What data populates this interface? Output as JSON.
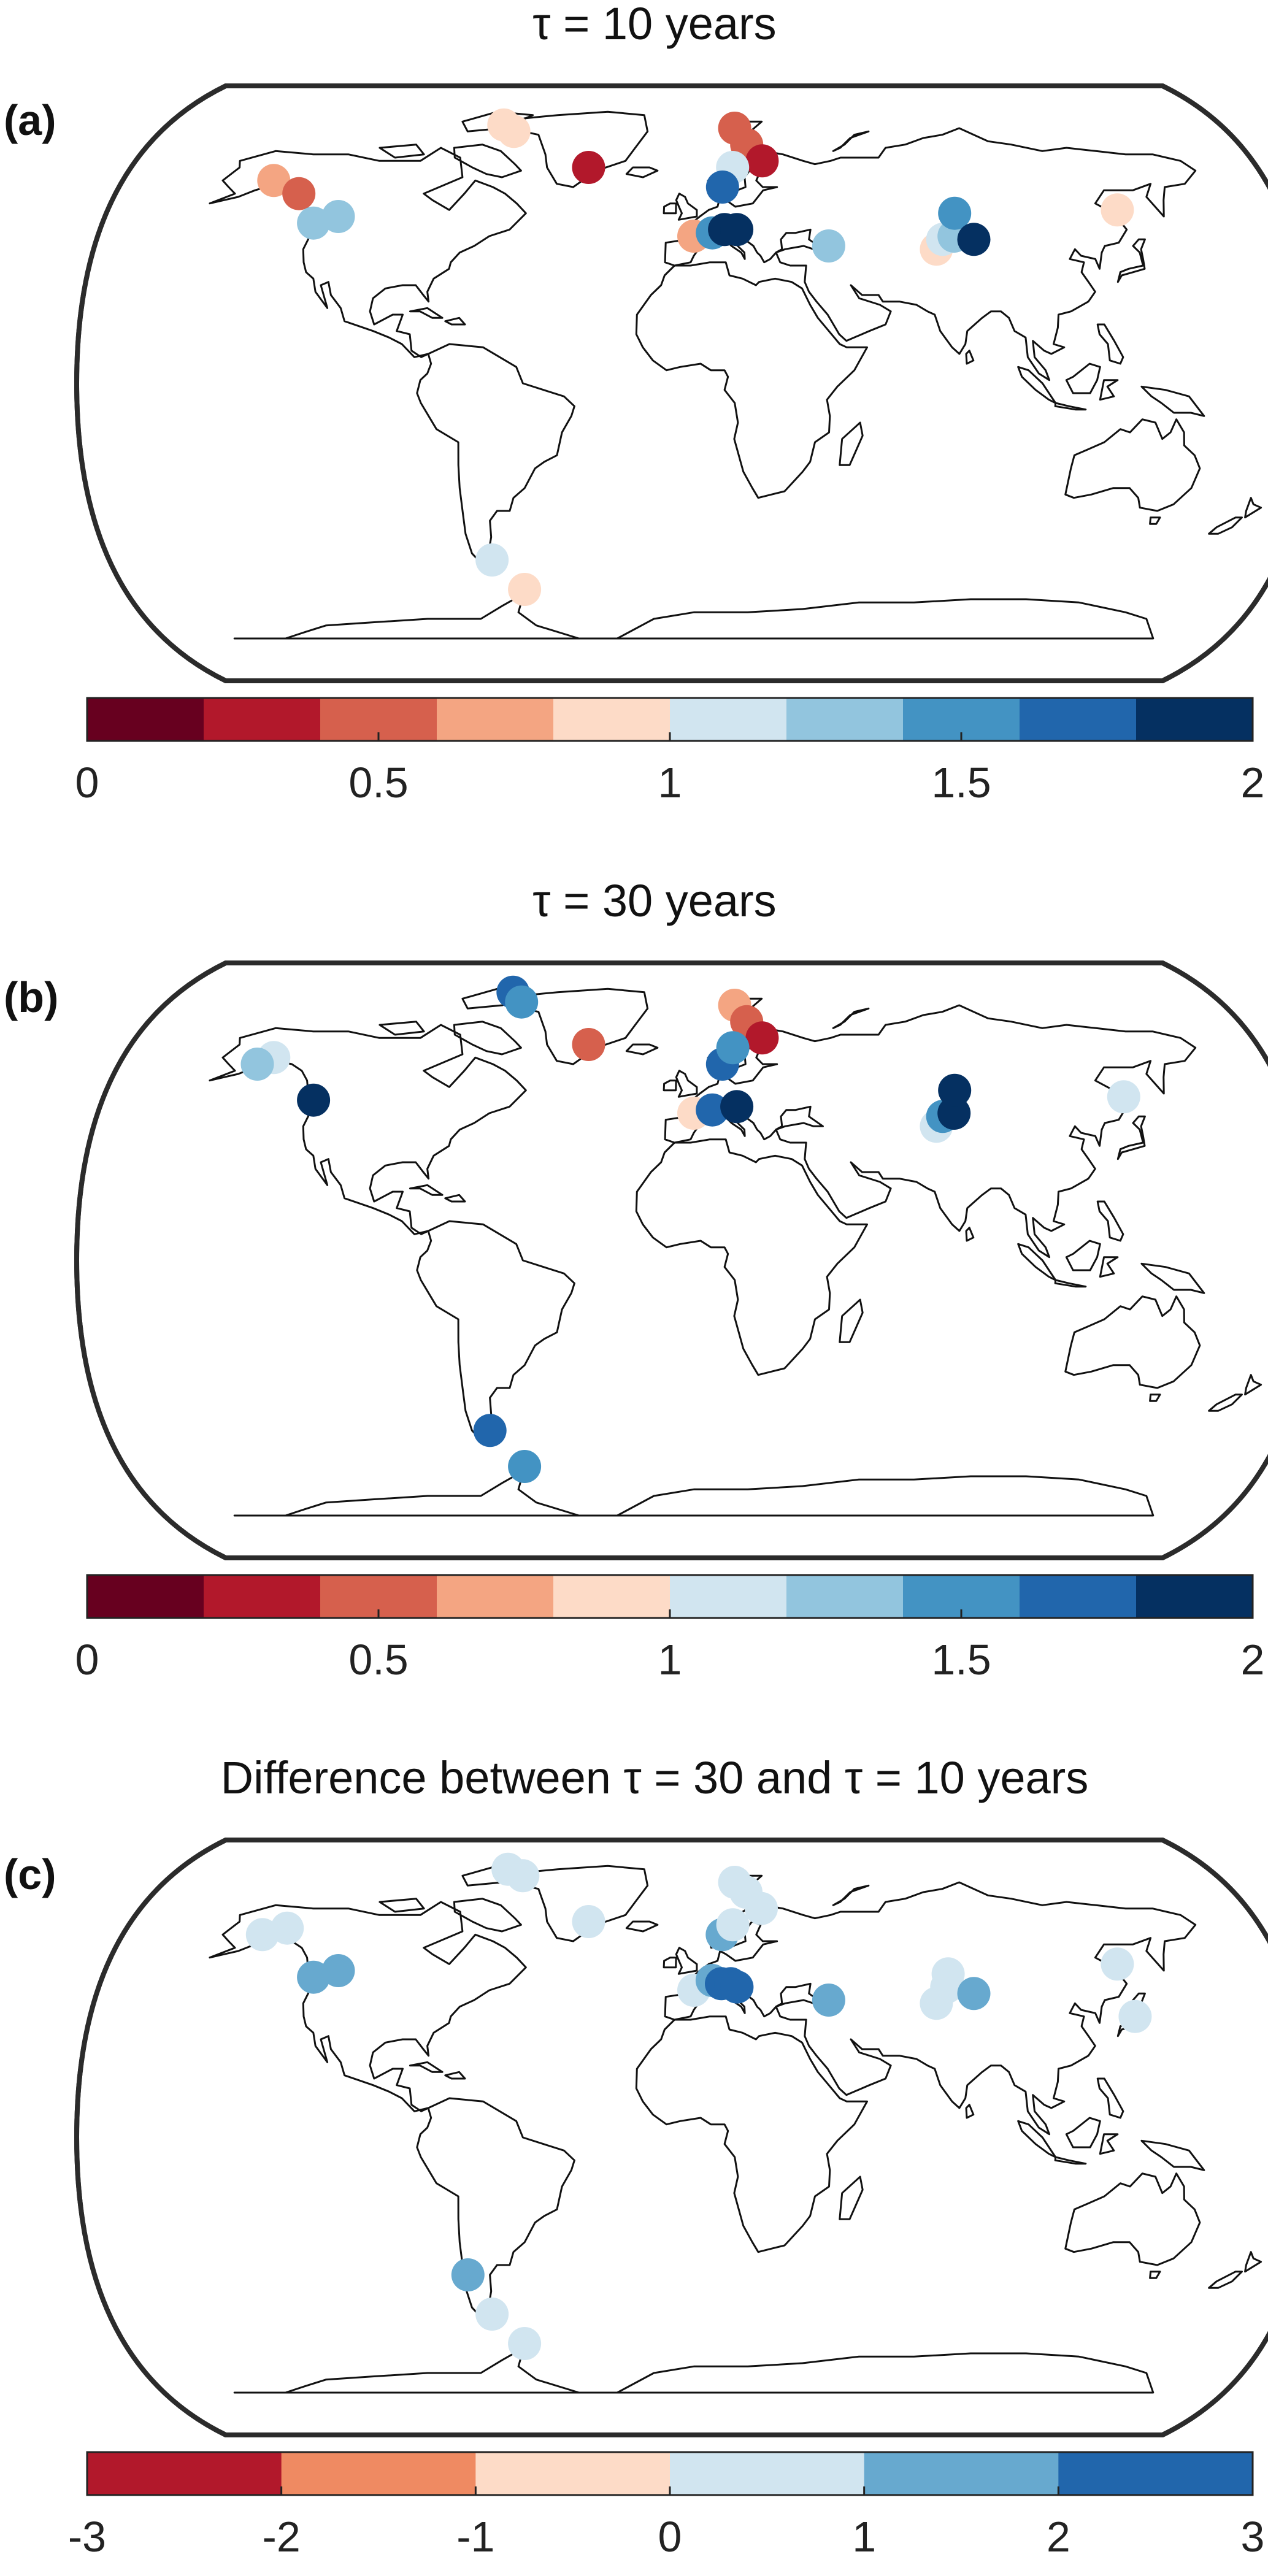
{
  "panels": [
    {
      "label": "(a)",
      "title": "τ = 10 years",
      "colorbar": {
        "ticks": [
          "0",
          "0.5",
          "1",
          "1.5",
          "2"
        ],
        "colors": [
          "#67001f",
          "#b2182b",
          "#d6604d",
          "#f4a582",
          "#fddbc7",
          "#d1e5f0",
          "#92c5de",
          "#4393c3",
          "#2166ac",
          "#053061"
        ]
      },
      "points": [
        {
          "lon": -148,
          "lat": 62,
          "v": 0.78
        },
        {
          "lon": -136,
          "lat": 58,
          "v": 0.5
        },
        {
          "lon": -125,
          "lat": 49,
          "v": 1.3
        },
        {
          "lon": -118,
          "lat": 51,
          "v": 1.3
        },
        {
          "lon": -75,
          "lat": 79,
          "v": 0.88
        },
        {
          "lon": -70,
          "lat": 77,
          "v": 0.85
        },
        {
          "lon": -38,
          "lat": 66,
          "v": 0.2
        },
        {
          "lon": 16,
          "lat": 78,
          "v": 0.5
        },
        {
          "lon": 20,
          "lat": 73,
          "v": 0.45
        },
        {
          "lon": 25,
          "lat": 68,
          "v": 0.38
        },
        {
          "lon": 14,
          "lat": 66,
          "v": 1.05
        },
        {
          "lon": 10,
          "lat": 60,
          "v": 1.7
        },
        {
          "lon": 0,
          "lat": 45,
          "v": 0.7
        },
        {
          "lon": 6,
          "lat": 46,
          "v": 1.5
        },
        {
          "lon": 10,
          "lat": 47,
          "v": 1.8
        },
        {
          "lon": 14,
          "lat": 47,
          "v": 1.95
        },
        {
          "lon": 43,
          "lat": 42,
          "v": 1.25
        },
        {
          "lon": 77,
          "lat": 41,
          "v": 0.85
        },
        {
          "lon": 80,
          "lat": 44,
          "v": 1.05
        },
        {
          "lon": 84,
          "lat": 45,
          "v": 1.3
        },
        {
          "lon": 87,
          "lat": 52,
          "v": 1.5
        },
        {
          "lon": 90,
          "lat": 44,
          "v": 1.95
        },
        {
          "lon": 142,
          "lat": 53,
          "v": 0.85
        },
        {
          "lon": -68,
          "lat": -54,
          "v": 1.05
        },
        {
          "lon": -60,
          "lat": -63,
          "v": 0.85
        }
      ]
    },
    {
      "label": "(b)",
      "title": "τ = 30 years",
      "colorbar": {
        "ticks": [
          "0",
          "0.5",
          "1",
          "1.5",
          "2"
        ],
        "colors": [
          "#67001f",
          "#b2182b",
          "#d6604d",
          "#f4a582",
          "#fddbc7",
          "#d1e5f0",
          "#92c5de",
          "#4393c3",
          "#2166ac",
          "#053061"
        ]
      },
      "points": [
        {
          "lon": -148,
          "lat": 62,
          "v": 1.05
        },
        {
          "lon": -152,
          "lat": 60,
          "v": 1.3
        },
        {
          "lon": -125,
          "lat": 49,
          "v": 1.95
        },
        {
          "lon": -73,
          "lat": 82,
          "v": 1.7
        },
        {
          "lon": -68,
          "lat": 79,
          "v": 1.5
        },
        {
          "lon": -38,
          "lat": 66,
          "v": 0.5
        },
        {
          "lon": 16,
          "lat": 78,
          "v": 0.7
        },
        {
          "lon": 20,
          "lat": 73,
          "v": 0.5
        },
        {
          "lon": 25,
          "lat": 68,
          "v": 0.3
        },
        {
          "lon": 10,
          "lat": 60,
          "v": 1.7
        },
        {
          "lon": 14,
          "lat": 65,
          "v": 1.5
        },
        {
          "lon": 0,
          "lat": 45,
          "v": 0.85
        },
        {
          "lon": 6,
          "lat": 46,
          "v": 1.7
        },
        {
          "lon": 14,
          "lat": 47,
          "v": 1.95
        },
        {
          "lon": 77,
          "lat": 41,
          "v": 1.05
        },
        {
          "lon": 80,
          "lat": 44,
          "v": 1.5
        },
        {
          "lon": 84,
          "lat": 45,
          "v": 1.95
        },
        {
          "lon": 87,
          "lat": 52,
          "v": 1.95
        },
        {
          "lon": 142,
          "lat": 50,
          "v": 1.05
        },
        {
          "lon": -68,
          "lat": -52,
          "v": 1.7
        },
        {
          "lon": -60,
          "lat": -63,
          "v": 1.5
        }
      ]
    },
    {
      "label": "(c)",
      "title": "Difference between τ = 30 and τ = 10 years",
      "colorbar": {
        "ticks": [
          "-3",
          "-2",
          "-1",
          "0",
          "1",
          "2",
          "3"
        ],
        "colors": [
          "#b2182b",
          "#ef8a62",
          "#fddbc7",
          "#d1e5f0",
          "#67a9cf",
          "#2166ac"
        ]
      },
      "points": [
        {
          "lon": -152,
          "lat": 62,
          "v": 0.5
        },
        {
          "lon": -145,
          "lat": 64,
          "v": 0.5
        },
        {
          "lon": -125,
          "lat": 49,
          "v": 1.5
        },
        {
          "lon": -118,
          "lat": 51,
          "v": 1.5
        },
        {
          "lon": -75,
          "lat": 82,
          "v": 0.5
        },
        {
          "lon": -68,
          "lat": 80,
          "v": 0.5
        },
        {
          "lon": -38,
          "lat": 66,
          "v": 0.5
        },
        {
          "lon": 16,
          "lat": 78,
          "v": 0.5
        },
        {
          "lon": 20,
          "lat": 75,
          "v": 0.5
        },
        {
          "lon": 25,
          "lat": 70,
          "v": 0.5
        },
        {
          "lon": 10,
          "lat": 62,
          "v": 1.5
        },
        {
          "lon": 14,
          "lat": 65,
          "v": 0.5
        },
        {
          "lon": 0,
          "lat": 45,
          "v": 0.5
        },
        {
          "lon": 6,
          "lat": 48,
          "v": 1.5
        },
        {
          "lon": 9,
          "lat": 47,
          "v": 2.5
        },
        {
          "lon": 12,
          "lat": 47,
          "v": 2.5
        },
        {
          "lon": 14,
          "lat": 46,
          "v": 2.5
        },
        {
          "lon": 43,
          "lat": 42,
          "v": 1.5
        },
        {
          "lon": 77,
          "lat": 41,
          "v": 0.5
        },
        {
          "lon": 82,
          "lat": 46,
          "v": 0.5
        },
        {
          "lon": 84,
          "lat": 50,
          "v": 0.5
        },
        {
          "lon": 90,
          "lat": 44,
          "v": 1.5
        },
        {
          "lon": 142,
          "lat": 53,
          "v": 0.5
        },
        {
          "lon": 138,
          "lat": 37,
          "v": 0.5
        },
        {
          "lon": -72,
          "lat": -42,
          "v": 1.5
        },
        {
          "lon": -68,
          "lat": -54,
          "v": 0.5
        },
        {
          "lon": -60,
          "lat": -63,
          "v": 0.5
        }
      ]
    }
  ]
}
